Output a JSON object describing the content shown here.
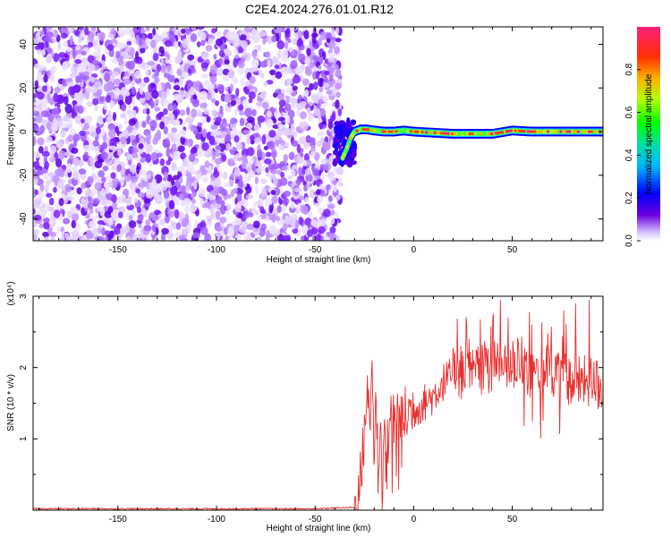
{
  "figure_title": "C2E4.2024.276.01.01.R12",
  "chart_data": [
    {
      "type": "heatmap",
      "xlabel": "Height of straight line (km)",
      "ylabel": "Frequency (Hz)",
      "xlim": [
        -193,
        96
      ],
      "ylim": [
        -50,
        48
      ],
      "xticks": [
        -150,
        -100,
        -50,
        0,
        50
      ],
      "yticks": [
        -40,
        -20,
        0,
        20,
        40
      ],
      "xtick_labels": [
        "-150",
        "-100",
        "-50",
        "0",
        "50"
      ],
      "ytick_labels": [
        "-40",
        "-20",
        "0",
        "20",
        "40"
      ],
      "noise_region_x": [
        -193,
        -37
      ],
      "transition_region_x": [
        -40,
        -30
      ],
      "signal_region_x": [
        -30,
        96
      ],
      "signal_track": {
        "x": [
          -36,
          -34,
          -32,
          -30,
          -27,
          -24,
          -20,
          -15,
          -10,
          -5,
          0,
          10,
          20,
          30,
          40,
          50,
          60,
          70,
          80,
          90,
          96
        ],
        "y": [
          -12,
          -8,
          -3,
          0,
          1,
          1,
          0.5,
          0,
          0,
          0.5,
          0,
          -0.5,
          -1,
          -1,
          -1,
          0.5,
          0,
          0,
          0,
          0,
          0
        ]
      },
      "grid": false,
      "colorbar": {
        "label": "Normalized spectral amplitude",
        "range": [
          0,
          1
        ],
        "ticks": [
          0.0,
          0.2,
          0.4,
          0.6,
          0.8
        ],
        "tick_labels": [
          "0.0",
          "0.2",
          "0.4",
          "0.6",
          "0.8"
        ],
        "colormap": [
          "#ffffff",
          "#b87aff",
          "#5a00e0",
          "#0000ff",
          "#00c8ff",
          "#00ff80",
          "#c8ff00",
          "#ffb000",
          "#ff4000",
          "#ff2080"
        ]
      }
    },
    {
      "type": "line",
      "xlabel": "Height of straight line (km)",
      "ylabel": "SNR (10 * v/v)",
      "scale_label": "(x10⁴)",
      "xlim": [
        -193,
        96
      ],
      "ylim": [
        0,
        3
      ],
      "xticks": [
        -150,
        -100,
        -50,
        0,
        50
      ],
      "yticks": [
        1,
        2,
        3
      ],
      "xtick_labels": [
        "-150",
        "-100",
        "-50",
        "0",
        "50"
      ],
      "ytick_labels": [
        "1",
        "2",
        "3"
      ],
      "grid": false,
      "series": [
        {
          "color": "#e83030",
          "x": [
            -193,
            -150,
            -100,
            -50,
            -30,
            -28,
            -26,
            -24,
            -22,
            -21,
            -20,
            -19,
            -18,
            -17,
            -16,
            -15,
            -14,
            -13,
            -12,
            -10,
            -8,
            -5,
            -2,
            0,
            5,
            10,
            15,
            20,
            25,
            30,
            35,
            40,
            45,
            50,
            55,
            60,
            65,
            70,
            75,
            80,
            85,
            90,
            96
          ],
          "y": [
            0.02,
            0.02,
            0.02,
            0.02,
            0.04,
            0.2,
            0.7,
            1.6,
            1.3,
            2.05,
            0.6,
            1.7,
            0.4,
            1.3,
            0.3,
            1.2,
            0.5,
            1.0,
            1.3,
            1.3,
            1.4,
            1.3,
            1.4,
            1.4,
            1.5,
            1.6,
            1.8,
            1.9,
            1.9,
            1.9,
            2.0,
            2.0,
            2.0,
            2.0,
            2.1,
            1.9,
            2.0,
            1.9,
            1.9,
            1.8,
            1.8,
            1.8,
            1.7
          ],
          "peaks": {
            "x": [
              -21,
              24,
              28,
              40,
              44,
              48,
              60,
              76,
              82,
              89,
              93
            ],
            "y": [
              2.1,
              2.3,
              2.4,
              2.7,
              2.95,
              2.7,
              2.6,
              2.8,
              2.9,
              2.95,
              2.1
            ]
          }
        }
      ]
    }
  ]
}
